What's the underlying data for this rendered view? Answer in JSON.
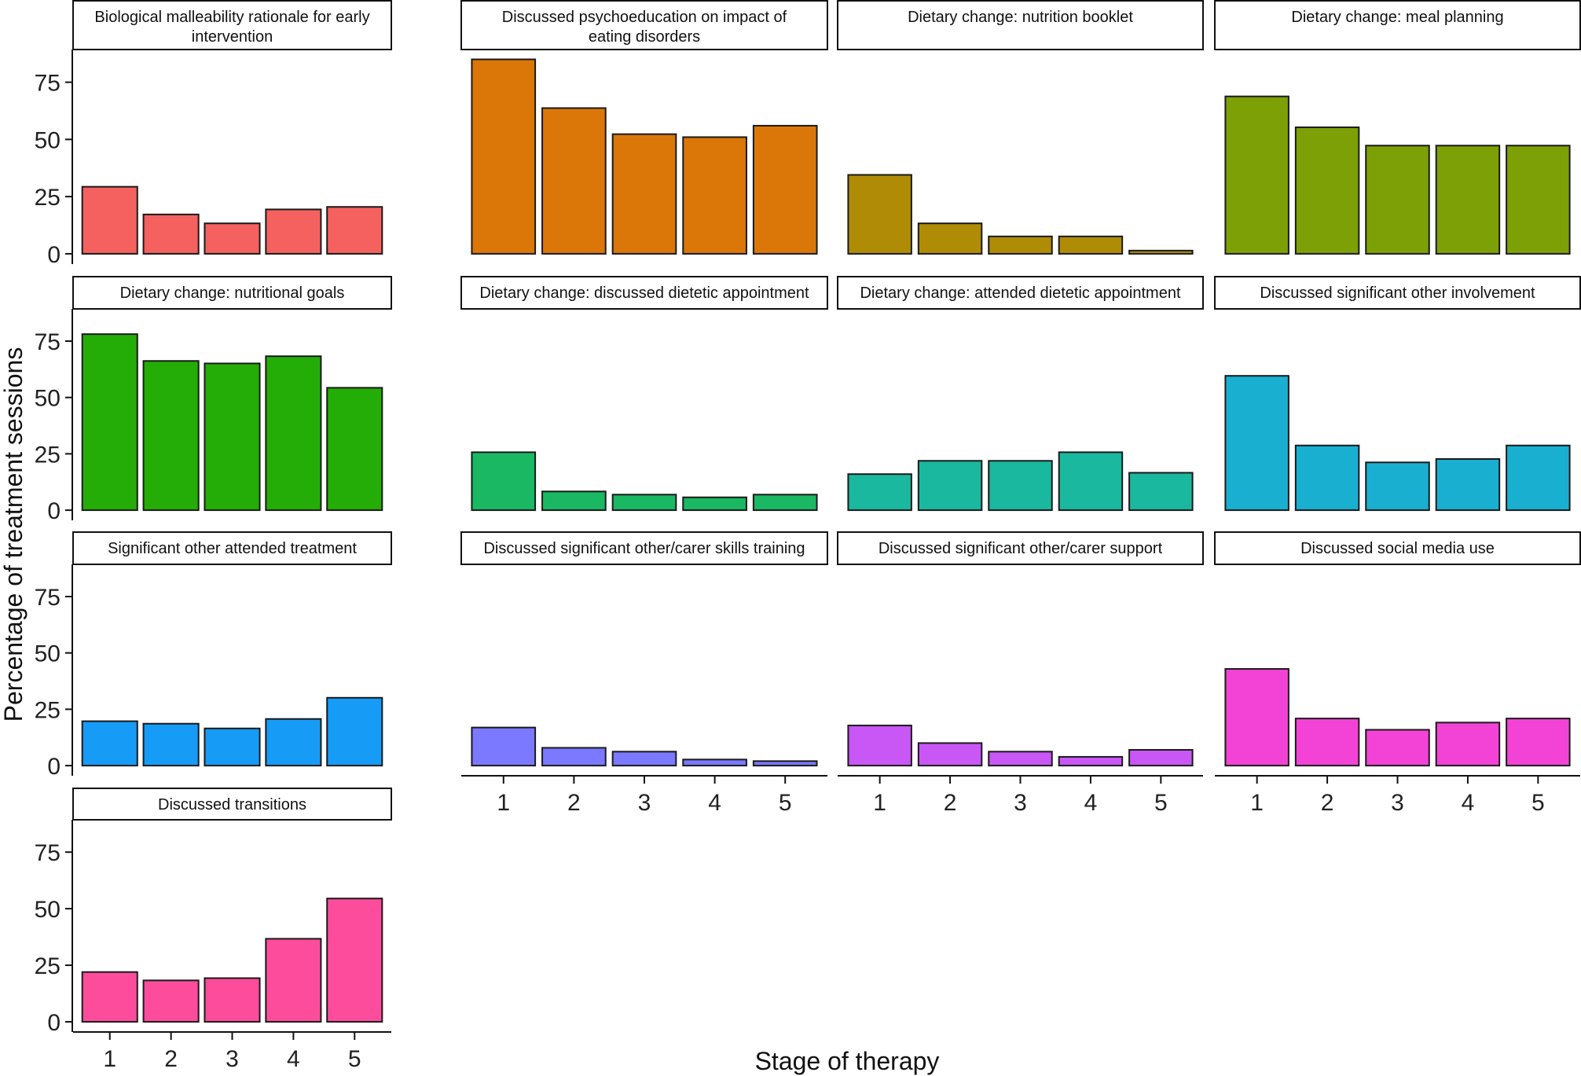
{
  "chart_data": {
    "type": "bar",
    "layout": "faceted small multiples (4 columns, free titles, shared axes)",
    "xlabel": "Stage of therapy",
    "ylabel": "Percentage of treatment sessions",
    "categories": [
      "1",
      "2",
      "3",
      "4",
      "5"
    ],
    "y_ticks": [
      "0",
      "25",
      "50",
      "75"
    ],
    "y_tick_values": [
      0,
      25,
      50,
      75
    ],
    "ylim": [
      -4.5,
      89.3
    ],
    "grid": false,
    "legend": "none",
    "bar_outline": "#1a1a1a",
    "panels": [
      {
        "title": "Biological malleability rationale for early intervention",
        "title_lines": [
          "Biological malleability rationale for early",
          "intervention"
        ],
        "color": "#F4615F",
        "values": [
          29.3,
          17.2,
          13.3,
          19.4,
          20.5
        ]
      },
      {
        "title": "Discussed psychoeducation on impact of eating disorders",
        "title_lines": [
          "Discussed psychoeducation on impact of",
          "eating disorders"
        ],
        "color": "#DA7708",
        "values": [
          85.0,
          63.7,
          52.3,
          51.0,
          56.0
        ]
      },
      {
        "title": "Dietary change: nutrition booklet",
        "title_lines": [
          "Dietary change: nutrition booklet"
        ],
        "color": "#B08C06",
        "values": [
          34.5,
          13.3,
          7.6,
          7.6,
          1.4
        ]
      },
      {
        "title": "Dietary change: meal planning",
        "title_lines": [
          "Dietary change: meal planning"
        ],
        "color": "#7DA006",
        "values": [
          68.8,
          55.3,
          47.3,
          47.3,
          47.3
        ]
      },
      {
        "title": "Dietary change: nutritional goals",
        "title_lines": [
          "Dietary change: nutritional goals"
        ],
        "color": "#24AD06",
        "values": [
          78.1,
          66.2,
          65.1,
          68.3,
          54.3
        ]
      },
      {
        "title": "Dietary change: discussed dietetic appointment",
        "title_lines": [
          "Dietary change: discussed dietetic appointment"
        ],
        "color": "#1AB862",
        "values": [
          25.7,
          8.3,
          6.9,
          5.7,
          6.9
        ]
      },
      {
        "title": "Dietary change: attended dietetic appointment",
        "title_lines": [
          "Dietary change: attended dietetic appointment"
        ],
        "color": "#1AB89E",
        "values": [
          16.0,
          21.9,
          21.9,
          25.7,
          16.6
        ]
      },
      {
        "title": "Discussed significant other involvement",
        "title_lines": [
          "Discussed significant other involvement"
        ],
        "color": "#19AFD1",
        "values": [
          59.6,
          28.7,
          21.2,
          22.7,
          28.7
        ]
      },
      {
        "title": "Significant other attended treatment",
        "title_lines": [
          "Significant other attended treatment"
        ],
        "color": "#169BF6",
        "values": [
          19.7,
          18.6,
          16.5,
          20.7,
          30.1
        ]
      },
      {
        "title": "Discussed significant other/carer skills training",
        "title_lines": [
          "Discussed significant other/carer skills training"
        ],
        "color": "#7A79FF",
        "values": [
          16.9,
          7.9,
          6.2,
          2.7,
          2.0
        ]
      },
      {
        "title": "Discussed significant other/carer support",
        "title_lines": [
          "Discussed significant other/carer support"
        ],
        "color": "#C857F5",
        "values": [
          17.8,
          10.0,
          6.2,
          3.9,
          7.0
        ]
      },
      {
        "title": "Discussed social media use",
        "title_lines": [
          "Discussed social media use"
        ],
        "color": "#F343D6",
        "values": [
          42.9,
          20.9,
          15.9,
          19.1,
          20.9
        ]
      },
      {
        "title": "Discussed transitions",
        "title_lines": [
          "Discussed transitions"
        ],
        "color": "#FD4C9B",
        "values": [
          22.0,
          18.3,
          19.3,
          36.7,
          54.5
        ]
      }
    ]
  }
}
